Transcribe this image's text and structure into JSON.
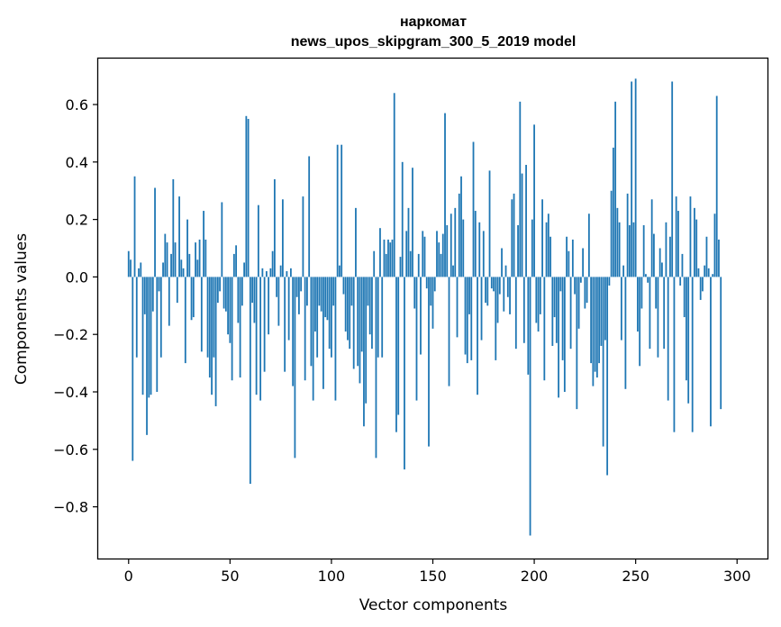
{
  "chart_data": {
    "type": "bar",
    "title_lines": [
      "наркомат",
      "news_upos_skipgram_300_5_2019 model"
    ],
    "xlabel": "Vector components",
    "ylabel": "Components values",
    "xlim": [
      -15,
      315
    ],
    "ylim": [
      -0.98,
      0.76
    ],
    "x_ticks": [
      0,
      50,
      100,
      150,
      200,
      250,
      300
    ],
    "y_ticks": [
      0.6,
      0.4,
      0.2,
      0.0,
      -0.2,
      -0.4,
      -0.6,
      -0.8
    ],
    "y_tick_labels": [
      "0.6",
      "0.4",
      "0.2",
      "0.0",
      "−0.2",
      "−0.4",
      "−0.6",
      "−0.8"
    ],
    "grid": false,
    "color": "#1f77b4",
    "values": [
      0.09,
      0.06,
      -0.64,
      0.35,
      -0.28,
      0.03,
      0.05,
      -0.41,
      -0.13,
      -0.55,
      -0.42,
      -0.41,
      -0.12,
      0.31,
      -0.4,
      -0.05,
      -0.28,
      0.05,
      0.15,
      0.12,
      -0.17,
      0.08,
      0.34,
      0.12,
      -0.09,
      0.28,
      0.06,
      0.03,
      -0.3,
      0.2,
      0.08,
      -0.15,
      -0.14,
      0.12,
      0.06,
      0.13,
      -0.26,
      0.23,
      0.13,
      -0.28,
      -0.35,
      -0.41,
      -0.28,
      -0.45,
      -0.09,
      -0.05,
      0.26,
      -0.11,
      -0.12,
      -0.2,
      -0.23,
      -0.36,
      0.08,
      0.11,
      -0.16,
      -0.35,
      -0.1,
      0.05,
      0.56,
      0.55,
      -0.72,
      -0.09,
      -0.16,
      -0.41,
      0.25,
      -0.43,
      0.03,
      -0.33,
      0.02,
      -0.2,
      0.03,
      0.09,
      0.34,
      -0.07,
      -0.17,
      0.04,
      0.27,
      -0.33,
      0.02,
      -0.22,
      0.03,
      -0.38,
      -0.63,
      -0.07,
      -0.13,
      -0.05,
      0.28,
      -0.36,
      -0.1,
      0.42,
      -0.31,
      -0.43,
      -0.19,
      -0.28,
      -0.1,
      -0.12,
      -0.39,
      -0.14,
      -0.15,
      -0.25,
      -0.28,
      -0.1,
      -0.43,
      0.46,
      0.04,
      0.46,
      -0.06,
      -0.19,
      -0.22,
      -0.25,
      -0.1,
      -0.32,
      0.24,
      -0.31,
      -0.37,
      -0.26,
      -0.52,
      -0.44,
      -0.1,
      -0.2,
      -0.25,
      0.09,
      -0.63,
      -0.28,
      0.17,
      -0.28,
      0.13,
      0.08,
      0.13,
      0.12,
      0.13,
      0.64,
      -0.54,
      -0.48,
      0.07,
      0.4,
      -0.67,
      0.16,
      0.24,
      0.09,
      0.38,
      -0.11,
      -0.43,
      0.08,
      -0.27,
      0.16,
      0.14,
      -0.04,
      -0.59,
      -0.1,
      -0.18,
      -0.05,
      0.16,
      0.12,
      0.08,
      0.15,
      0.57,
      0.18,
      -0.38,
      0.22,
      0.04,
      0.24,
      -0.21,
      0.29,
      0.35,
      0.2,
      -0.27,
      -0.3,
      -0.13,
      -0.29,
      0.47,
      0.23,
      -0.41,
      0.19,
      -0.22,
      0.16,
      -0.09,
      -0.1,
      0.37,
      -0.04,
      -0.05,
      -0.29,
      -0.16,
      -0.06,
      0.1,
      -0.12,
      0.04,
      -0.07,
      -0.13,
      0.27,
      0.29,
      -0.25,
      0.18,
      0.61,
      0.36,
      -0.23,
      0.39,
      -0.34,
      -0.9,
      0.2,
      0.53,
      -0.16,
      -0.19,
      -0.13,
      0.27,
      -0.36,
      0.19,
      0.22,
      0.14,
      -0.24,
      -0.14,
      -0.23,
      -0.42,
      -0.05,
      -0.29,
      -0.4,
      0.14,
      0.09,
      -0.25,
      0.13,
      -0.06,
      -0.46,
      -0.18,
      -0.02,
      0.1,
      -0.11,
      -0.09,
      0.22,
      -0.3,
      -0.38,
      -0.33,
      -0.35,
      -0.3,
      -0.24,
      -0.59,
      -0.22,
      -0.69,
      -0.03,
      0.3,
      0.45,
      0.61,
      0.24,
      0.19,
      -0.22,
      0.04,
      -0.39,
      0.29,
      0.18,
      0.68,
      0.19,
      0.69,
      -0.19,
      -0.31,
      -0.11,
      0.18,
      0.01,
      -0.02,
      -0.25,
      0.27,
      0.15,
      -0.11,
      -0.28,
      0.1,
      0.05,
      -0.25,
      0.19,
      -0.43,
      0.14,
      0.68,
      -0.54,
      0.28,
      0.23,
      -0.03,
      0.08,
      -0.14,
      -0.36,
      -0.44,
      0.28,
      -0.54,
      0.24,
      0.2,
      0.03,
      -0.08,
      -0.05,
      0.04,
      0.14,
      0.03,
      -0.52,
      0.01,
      0.22,
      0.63,
      0.13,
      -0.46
    ]
  }
}
